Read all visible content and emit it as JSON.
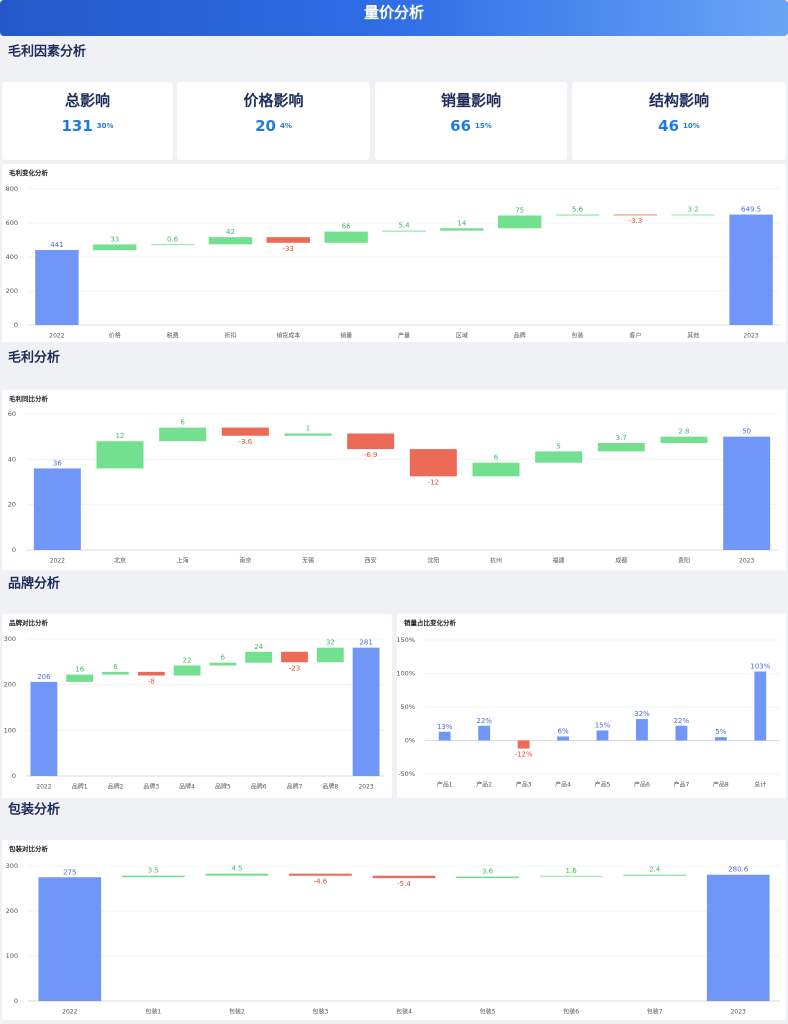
{
  "header": {
    "title": "量价分析"
  },
  "sections": [
    "毛利因素分析",
    "毛利分析",
    "品牌分析",
    "包装分析"
  ],
  "kpis": [
    {
      "label": "总影响",
      "value": 131,
      "share": "30%"
    },
    {
      "label": "价格影响",
      "value": 20,
      "share": "4%"
    },
    {
      "label": "销量影响",
      "value": 66,
      "share": "15%"
    },
    {
      "label": "结构影响",
      "value": 46,
      "share": "10%"
    }
  ],
  "chart_data": [
    {
      "type": "waterfall",
      "title": "毛利变化分析",
      "categories": [
        "2022",
        "价格",
        "税费",
        "折扣",
        "销货成本",
        "销量",
        "产量",
        "区域",
        "品牌",
        "包装",
        "客户",
        "其他",
        "2023"
      ],
      "values": [
        441,
        33,
        0.6,
        42,
        -33,
        66,
        5.4,
        14,
        75,
        5.6,
        -3.3,
        3.2,
        649.5
      ],
      "colors": {
        "total": "#7096f8",
        "increase": "#72e08f",
        "decrease": "#ec6b56"
      },
      "ylim": [
        0,
        800
      ],
      "yticks": [
        0,
        200,
        400,
        600,
        800
      ],
      "grid": true
    },
    {
      "type": "waterfall",
      "title": "毛利同比分析",
      "categories": [
        "2022",
        "北京",
        "上海",
        "南京",
        "无锡",
        "西安",
        "沈阳",
        "杭州",
        "福建",
        "成都",
        "贵阳",
        "2023"
      ],
      "values": [
        36,
        12,
        6,
        -3.6,
        1,
        -6.9,
        -12,
        6,
        5,
        3.7,
        2.8,
        50
      ],
      "colors": {
        "total": "#7096f8",
        "increase": "#72e08f",
        "decrease": "#ec6b56"
      },
      "ylim": [
        0,
        60
      ],
      "yticks": [
        0,
        20,
        40,
        60
      ],
      "grid": true
    },
    {
      "type": "waterfall",
      "title": "品牌对比分析",
      "categories": [
        "2022",
        "品牌1",
        "品牌2",
        "品牌3",
        "品牌4",
        "品牌5",
        "品牌6",
        "品牌7",
        "品牌8",
        "2023"
      ],
      "values": [
        206,
        16,
        6,
        -8,
        22,
        6,
        24,
        -23,
        32,
        281
      ],
      "colors": {
        "total": "#7096f8",
        "increase": "#72e08f",
        "decrease": "#ec6b56"
      },
      "ylim": [
        0,
        300
      ],
      "yticks": [
        0,
        100,
        200,
        300
      ],
      "grid": true
    },
    {
      "type": "bar",
      "title": "销量占比变化分析",
      "categories": [
        "产品1",
        "产品2",
        "产品3",
        "产品4",
        "产品5",
        "产品6",
        "产品7",
        "产品8",
        "总计"
      ],
      "values": [
        13,
        22,
        -12,
        6,
        15,
        32,
        22,
        5,
        103
      ],
      "value_labels": [
        "13%",
        "22%",
        "-12%",
        "6%",
        "15%",
        "32%",
        "22%",
        "5%",
        "103%"
      ],
      "color": "#7096f8",
      "negative_color": "#ec6b56",
      "ylim": [
        -50,
        150
      ],
      "yticks": [
        {
          "value": -50,
          "label": "-50%"
        },
        {
          "value": 0,
          "label": "0%"
        },
        {
          "value": 50,
          "label": "50%"
        },
        {
          "value": 100,
          "label": "100%"
        },
        {
          "value": 150,
          "label": "150%"
        }
      ],
      "grid": true
    },
    {
      "type": "waterfall",
      "title": "包装对比分析",
      "categories": [
        "2022",
        "包装1",
        "包装2",
        "包装3",
        "包装4",
        "包装5",
        "包装6",
        "包装7",
        "2023"
      ],
      "values": [
        275,
        3.5,
        4.5,
        -4.6,
        -5.4,
        3.6,
        1.6,
        2.4,
        280.6
      ],
      "colors": {
        "total": "#7096f8",
        "increase": "#72e08f",
        "decrease": "#ec6b56"
      },
      "ylim": [
        0,
        300
      ],
      "yticks": [
        0,
        100,
        200,
        300
      ],
      "grid": true
    }
  ]
}
